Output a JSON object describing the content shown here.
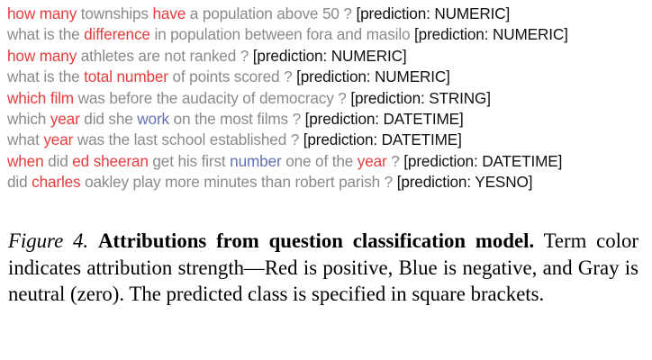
{
  "attribution_lines": [
    {
      "tokens": [
        {
          "text": "how many",
          "polarity": "positive"
        },
        {
          "text": " townships ",
          "polarity": "neutral"
        },
        {
          "text": "have",
          "polarity": "positive"
        },
        {
          "text": " a population above 50 ? ",
          "polarity": "neutral"
        }
      ],
      "prediction": "[prediction: NUMERIC]"
    },
    {
      "tokens": [
        {
          "text": "what is the ",
          "polarity": "neutral"
        },
        {
          "text": "difference",
          "polarity": "positive"
        },
        {
          "text": " in population between fora and masilo ",
          "polarity": "neutral"
        }
      ],
      "prediction": "[prediction: NUMERIC]"
    },
    {
      "tokens": [
        {
          "text": "how many",
          "polarity": "positive"
        },
        {
          "text": " athletes are not ranked ? ",
          "polarity": "neutral"
        }
      ],
      "prediction": "[prediction: NUMERIC]"
    },
    {
      "tokens": [
        {
          "text": "what is the ",
          "polarity": "neutral"
        },
        {
          "text": "total number",
          "polarity": "positive"
        },
        {
          "text": " of points scored ? ",
          "polarity": "neutral"
        }
      ],
      "prediction": "[prediction: NUMERIC]"
    },
    {
      "tokens": [
        {
          "text": "which film",
          "polarity": "positive"
        },
        {
          "text": " was before the audacity of democracy ? ",
          "polarity": "neutral"
        }
      ],
      "prediction": "[prediction: STRING]"
    },
    {
      "tokens": [
        {
          "text": "which ",
          "polarity": "neutral"
        },
        {
          "text": "year",
          "polarity": "positive"
        },
        {
          "text": " did she ",
          "polarity": "neutral"
        },
        {
          "text": "work",
          "polarity": "negative"
        },
        {
          "text": " on the most films ? ",
          "polarity": "neutral"
        }
      ],
      "prediction": "[prediction: DATETIME]"
    },
    {
      "tokens": [
        {
          "text": "what ",
          "polarity": "neutral"
        },
        {
          "text": "year",
          "polarity": "positive"
        },
        {
          "text": " was the last school established ? ",
          "polarity": "neutral"
        }
      ],
      "prediction": "[prediction: DATETIME]"
    },
    {
      "tokens": [
        {
          "text": "when",
          "polarity": "positive"
        },
        {
          "text": " did ",
          "polarity": "neutral"
        },
        {
          "text": "ed sheeran",
          "polarity": "positive"
        },
        {
          "text": " get his first ",
          "polarity": "neutral"
        },
        {
          "text": "number",
          "polarity": "negative"
        },
        {
          "text": " one of the ",
          "polarity": "neutral"
        },
        {
          "text": "year",
          "polarity": "positive"
        },
        {
          "text": " ? ",
          "polarity": "neutral"
        }
      ],
      "prediction": "[prediction: DATETIME]"
    },
    {
      "tokens": [
        {
          "text": "did ",
          "polarity": "neutral"
        },
        {
          "text": "charles",
          "polarity": "positive"
        },
        {
          "text": " oakley play more minutes than robert parish ? ",
          "polarity": "neutral"
        }
      ],
      "prediction": "[prediction: YESNO]"
    }
  ],
  "colors": {
    "positive": "#e63c3c",
    "negative": "#6272b0",
    "neutral": "#8a8a8a",
    "prediction": "#111111"
  },
  "caption": {
    "label": "Figure 4.",
    "title": "Attributions from question classification model.",
    "body": "Term color indicates attribution strength—Red is positive, Blue is negative, and Gray is neutral (zero). The predicted class is speci­fied in square brackets."
  }
}
